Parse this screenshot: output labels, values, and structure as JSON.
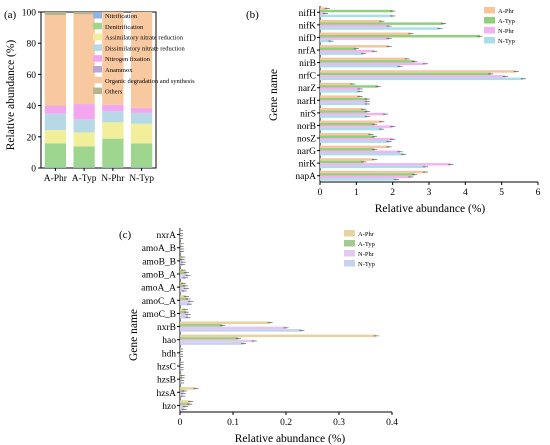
{
  "colors": {
    "nitrification": "#8db4e3",
    "denitrification": "#9ed68f",
    "assimilatory": "#f3ee9a",
    "dissimilatory": "#b7d9e6",
    "nitrogen_fixation": "#f3a6ef",
    "anammox": "#b8a6d6",
    "organic": "#f8c9a0",
    "others": "#b4b48e",
    "A_Phr": "#f6c59d",
    "A_Typ": "#8fd07d",
    "N_Phr": "#f3b3f3",
    "N_Typ": "#a9dfe9",
    "c_A_Phr": "#e7d3a0",
    "c_A_Typ": "#a4c98f",
    "c_N_Phr": "#e3c9f0",
    "c_N_Typ": "#c6d2ee"
  },
  "chart_data": [
    {
      "panel": "(a)",
      "type": "bar",
      "stacked": true,
      "categories": [
        "A-Phr",
        "A-Typ",
        "N-Phr",
        "N-Typ"
      ],
      "ylabel": "Relative abundance (%)",
      "ylim": [
        0,
        100
      ],
      "yticks": [
        "0",
        "20",
        "40",
        "60",
        "80",
        "100"
      ],
      "legend_position": "top-right",
      "series": [
        {
          "name": "Nitrification",
          "color_key": "nitrification",
          "values": [
            0.3,
            0.3,
            0.3,
            0.3
          ]
        },
        {
          "name": "Denitrification",
          "color_key": "denitrification",
          "values": [
            15.5,
            13.5,
            18.5,
            15.5
          ]
        },
        {
          "name": "Assimilatory nitrate reduction",
          "color_key": "assimilatory",
          "values": [
            8.5,
            9,
            10.5,
            12.5
          ]
        },
        {
          "name": "Dissimilatory nitrate reduction",
          "color_key": "dissimilatory",
          "values": [
            10.5,
            8.5,
            7,
            7
          ]
        },
        {
          "name": "Nitrogen fixation",
          "color_key": "nitrogen_fixation",
          "values": [
            5,
            9.5,
            4,
            3
          ]
        },
        {
          "name": "Anammox",
          "color_key": "anammox",
          "values": [
            0.2,
            0.2,
            0.2,
            0.2
          ]
        },
        {
          "name": "Organic degradation and synthesis",
          "color_key": "organic",
          "values": [
            58,
            57.5,
            59.5,
            61.5
          ]
        },
        {
          "name": "Others",
          "color_key": "others",
          "values": [
            2,
            1.5,
            0,
            0
          ]
        }
      ]
    },
    {
      "panel": "(b)",
      "type": "bar",
      "orientation": "horizontal",
      "categories": [
        "nifH",
        "nifK",
        "nifD",
        "nrfA",
        "nirB",
        "nrfC",
        "narZ",
        "narH",
        "nirS",
        "norB",
        "nosZ",
        "narG",
        "nirK",
        "napA"
      ],
      "xlabel": "Relative abundance (%)",
      "ylabel": "Gene name",
      "xlim": [
        0,
        6
      ],
      "xticks": [
        "0",
        "1",
        "2",
        "3",
        "4",
        "5",
        "6"
      ],
      "legend_position": "top-right",
      "series": [
        {
          "name": "A-Phr",
          "color_key": "A_Phr",
          "values": [
            0.2,
            1.7,
            2.5,
            1.9,
            2.4,
            5.4,
            0.9,
            1.1,
            1.2,
            1.7,
            1.4,
            1.9,
            1.5,
            2.9
          ]
        },
        {
          "name": "A-Typ",
          "color_key": "A_Typ",
          "values": [
            2.0,
            3.4,
            4.4,
            1.0,
            2.6,
            4.7,
            1.6,
            1.3,
            1.3,
            1.5,
            1.5,
            1.5,
            1.2,
            2.6
          ]
        },
        {
          "name": "N-Phr",
          "color_key": "N_Phr",
          "values": [
            0.15,
            1.9,
            1.9,
            1.5,
            2.9,
            5.1,
            1.1,
            1.3,
            1.8,
            2.0,
            2.0,
            2.2,
            3.6,
            2.5
          ]
        },
        {
          "name": "N-Typ",
          "color_key": "N_Typ",
          "values": [
            2.0,
            3.3,
            0.3,
            1.2,
            2.2,
            5.6,
            1.1,
            1.3,
            1.3,
            1.7,
            1.9,
            2.3,
            2.9,
            2.1
          ]
        }
      ]
    },
    {
      "panel": "(c)",
      "type": "bar",
      "orientation": "horizontal",
      "categories": [
        "nxrA",
        "amoA_B",
        "amoB_B",
        "amoB_A",
        "amoA_A",
        "amoC_A",
        "amoC_B",
        "nxrB",
        "hao",
        "hdh",
        "hzsC",
        "hzsB",
        "hzsA",
        "hzo"
      ],
      "xlabel": "Relative abundance (%)",
      "ylabel": "Gene name",
      "xlim": [
        0,
        0.4
      ],
      "xticks": [
        "0",
        "0.1",
        "0.2",
        "0.3",
        "0.4"
      ],
      "legend_position": "top-right",
      "series": [
        {
          "name": "A-Phr",
          "color_key": "c_A_Phr",
          "values": [
            0.001,
            0.002,
            0.005,
            0.006,
            0.006,
            0.012,
            0.01,
            0.17,
            0.37,
            0.001,
            0.002,
            0.004,
            0.03,
            0.02
          ]
        },
        {
          "name": "A-Typ",
          "color_key": "c_A_Typ",
          "values": [
            0.001,
            0.002,
            0.004,
            0.012,
            0.01,
            0.015,
            0.012,
            0.08,
            0.11,
            0.001,
            0.002,
            0.004,
            0.008,
            0.018
          ]
        },
        {
          "name": "N-Phr",
          "color_key": "c_N_Phr",
          "values": [
            0.001,
            0.003,
            0.006,
            0.015,
            0.012,
            0.02,
            0.015,
            0.2,
            0.14,
            0.001,
            0.002,
            0.003,
            0.006,
            0.01
          ]
        },
        {
          "name": "N-Typ",
          "color_key": "c_N_Typ",
          "values": [
            0.001,
            0.003,
            0.005,
            0.01,
            0.008,
            0.018,
            0.015,
            0.23,
            0.12,
            0.001,
            0.002,
            0.003,
            0.005,
            0.008
          ]
        }
      ]
    }
  ]
}
